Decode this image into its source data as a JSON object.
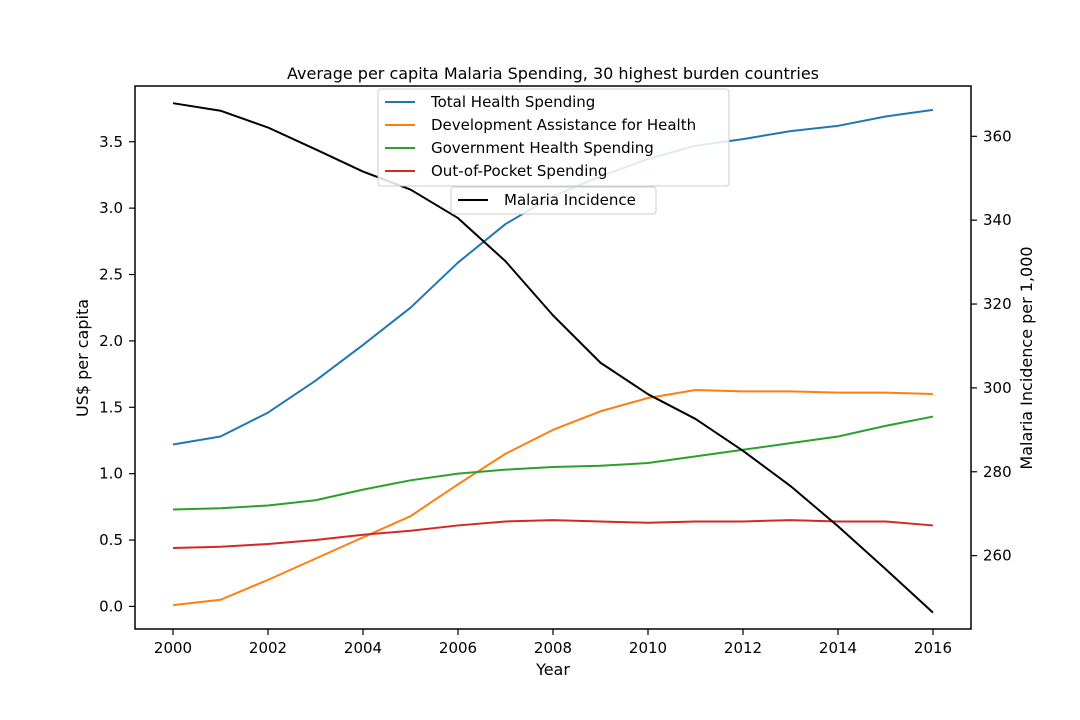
{
  "chart_data": {
    "type": "line",
    "title": "Average per capita Malaria Spending, 30 highest burden countries",
    "xlabel": "Year",
    "ylabel": "US$ per capita",
    "ylabel_right": "Malaria Incidence per 1,000",
    "x": [
      2000,
      2001,
      2002,
      2003,
      2004,
      2005,
      2006,
      2007,
      2008,
      2009,
      2010,
      2011,
      2012,
      2013,
      2014,
      2015,
      2016
    ],
    "xlim": [
      1999.2,
      2016.8
    ],
    "ylim": [
      -0.17,
      3.92
    ],
    "ylim_right": [
      242.5,
      372.0
    ],
    "x_ticks": [
      2000,
      2002,
      2004,
      2006,
      2008,
      2010,
      2012,
      2014,
      2016
    ],
    "y_ticks": [
      0.0,
      0.5,
      1.0,
      1.5,
      2.0,
      2.5,
      3.0,
      3.5
    ],
    "y_tick_labels": [
      "0.0",
      "0.5",
      "1.0",
      "1.5",
      "2.0",
      "2.5",
      "3.0",
      "3.5"
    ],
    "y_ticks_right": [
      260,
      280,
      300,
      320,
      340,
      360
    ],
    "grid": false,
    "series": [
      {
        "name": "Total Health Spending",
        "axis": "left",
        "color": "#1f77b4",
        "values": [
          1.22,
          1.28,
          1.46,
          1.7,
          1.97,
          2.25,
          2.59,
          2.88,
          3.09,
          3.24,
          3.37,
          3.47,
          3.52,
          3.58,
          3.62,
          3.69,
          3.74
        ]
      },
      {
        "name": "Development Assistance for Health",
        "axis": "left",
        "color": "#ff7f0e",
        "values": [
          0.01,
          0.05,
          0.2,
          0.36,
          0.52,
          0.68,
          0.92,
          1.15,
          1.33,
          1.47,
          1.57,
          1.63,
          1.62,
          1.62,
          1.61,
          1.61,
          1.6
        ]
      },
      {
        "name": "Government Health Spending",
        "axis": "left",
        "color": "#2ca02c",
        "values": [
          0.73,
          0.74,
          0.76,
          0.8,
          0.88,
          0.95,
          1.0,
          1.03,
          1.05,
          1.06,
          1.08,
          1.13,
          1.18,
          1.23,
          1.28,
          1.36,
          1.43
        ]
      },
      {
        "name": "Out-of-Pocket Spending",
        "axis": "left",
        "color": "#d62728",
        "values": [
          0.44,
          0.45,
          0.47,
          0.5,
          0.54,
          0.57,
          0.61,
          0.64,
          0.65,
          0.64,
          0.63,
          0.64,
          0.64,
          0.65,
          0.64,
          0.64,
          0.61
        ]
      },
      {
        "name": "Malaria Incidence",
        "axis": "right",
        "color": "#000000",
        "values": [
          367.9,
          366.1,
          362.1,
          356.9,
          351.6,
          347.3,
          340.5,
          330.2,
          317.3,
          306.0,
          298.5,
          292.6,
          285.0,
          276.6,
          267.0,
          256.8,
          246.4
        ]
      }
    ],
    "legend": {
      "main_placement": "upper-center",
      "main_entries": [
        "Total Health Spending",
        "Development Assistance for Health",
        "Government Health Spending",
        "Out-of-Pocket Spending"
      ],
      "secondary_placement": "upper-center",
      "secondary_entries": [
        "Malaria Incidence"
      ]
    }
  }
}
